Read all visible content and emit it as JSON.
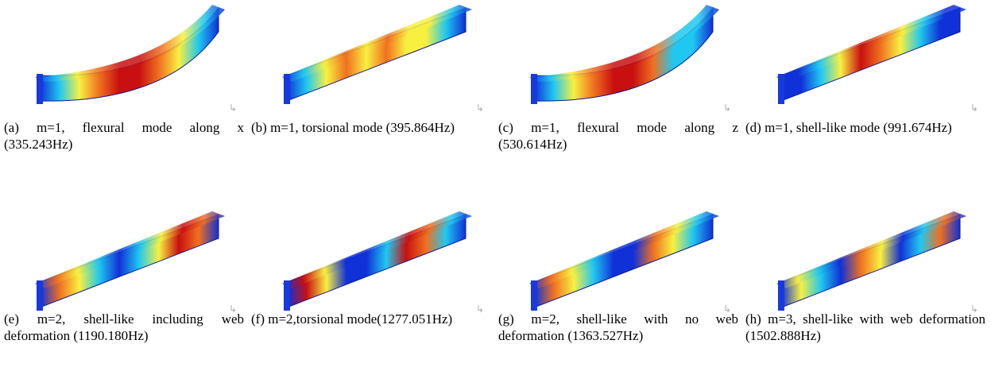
{
  "figures": [
    {
      "label": "(a)",
      "caption": "m=1, flexural mode along x (335.243Hz)"
    },
    {
      "label": "(b)",
      "caption": "m=1, torsional mode (395.864Hz)"
    },
    {
      "label": "(c)",
      "caption": "m=1, flexural mode along z (530.614Hz)"
    },
    {
      "label": "(d)",
      "caption": "m=1, shell-like mode (991.674Hz)"
    },
    {
      "label": "(e)",
      "caption": "m=2, shell-like including web deformation (1190.180Hz)"
    },
    {
      "label": "(f)",
      "caption": "m=2,torsional mode(1277.051Hz)"
    },
    {
      "label": "(g)",
      "caption": "m=2, shell-like with no web deformation (1363.527Hz)"
    },
    {
      "label": "(h)",
      "caption": "m=3, shell-like with web deformation (1502.888Hz)"
    }
  ]
}
